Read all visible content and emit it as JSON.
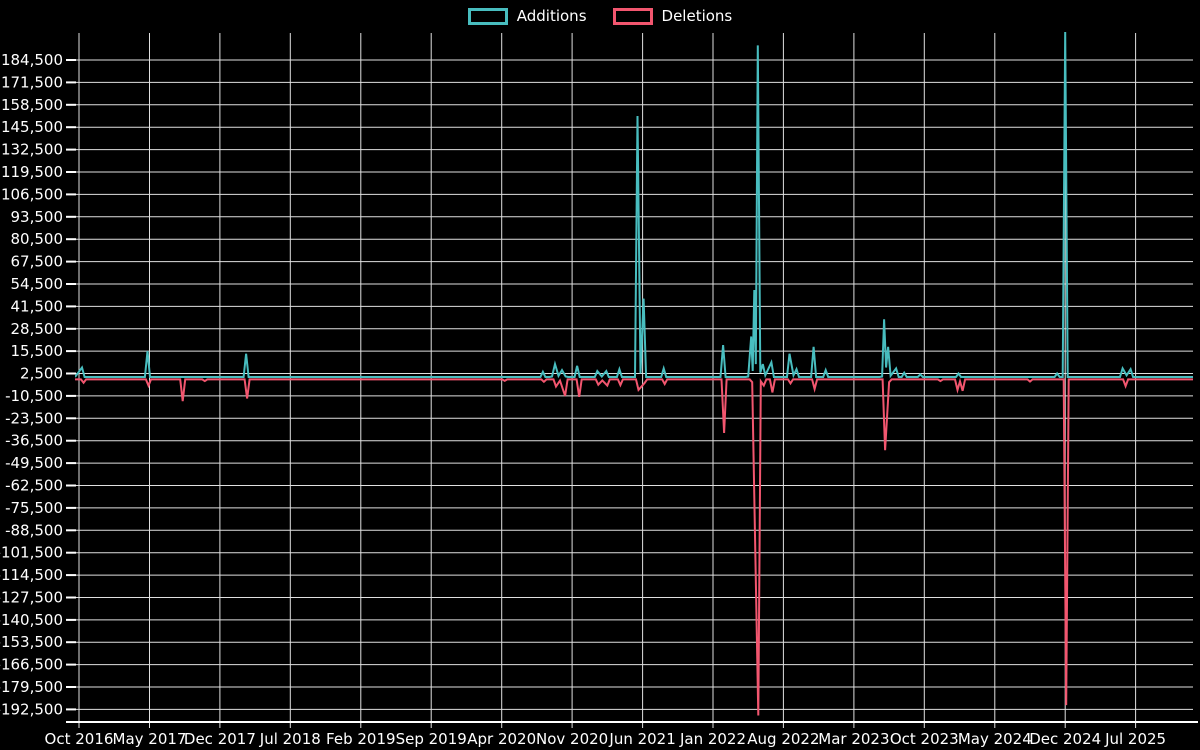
{
  "legend": {
    "items": [
      {
        "label": "Additions",
        "color": "#48bdbf"
      },
      {
        "label": "Deletions",
        "color": "#f2566f"
      }
    ]
  },
  "chart_data": {
    "type": "line",
    "title": "",
    "description": "Weekly code additions (teal, positive spikes) and deletions (pink, negative spikes) over time",
    "legend_position": "top-center",
    "grid": true,
    "background": "#000000",
    "grid_color": "#e0e0e0",
    "axis_color": "#ffffff",
    "text_color": "#ffffff",
    "x_axis": {
      "unit": "months since Oct 2016",
      "tick_labels": [
        "Oct 2016",
        "May 2017",
        "Dec 2017",
        "Jul 2018",
        "Feb 2019",
        "Sep 2019",
        "Apr 2020",
        "Nov 2020",
        "Jun 2021",
        "Jan 2022",
        "Aug 2022",
        "Mar 2023",
        "Oct 2023",
        "May 2024",
        "Dec 2024",
        "Jul 2025"
      ],
      "tick_month_offsets": [
        0,
        7,
        14,
        21,
        28,
        35,
        42,
        49,
        56,
        63,
        70,
        77,
        84,
        91,
        98,
        105
      ],
      "range_month_offsets": [
        -0.4,
        110.7
      ]
    },
    "y_axis": {
      "tick_labels": [
        "184,500",
        "171,500",
        "158,500",
        "145,500",
        "132,500",
        "119,500",
        "106,500",
        "93,500",
        "80,500",
        "67,500",
        "54,500",
        "41,500",
        "28,500",
        "15,500",
        "2,500",
        "-10,500",
        "-23,500",
        "-36,500",
        "-49,500",
        "-62,500",
        "-75,500",
        "-88,500",
        "-101,500",
        "-114,500",
        "-127,500",
        "-140,500",
        "-153,500",
        "-166,500",
        "-179,500",
        "-192,500"
      ],
      "tick_step": 13000,
      "range": [
        -199800,
        200200
      ]
    },
    "series": [
      {
        "name": "Additions",
        "color": "#48bdbf",
        "baseline": 500,
        "points": [
          [
            0.3,
            6000
          ],
          [
            6.8,
            15500
          ],
          [
            16.6,
            14000
          ],
          [
            46.1,
            3500
          ],
          [
            47.0,
            800
          ],
          [
            47.3,
            8000
          ],
          [
            47.65,
            1200
          ],
          [
            48.0,
            4500
          ],
          [
            48.35,
            800
          ],
          [
            49.5,
            7000
          ],
          [
            51.5,
            4000
          ],
          [
            51.95,
            800
          ],
          [
            52.4,
            4000
          ],
          [
            53.7,
            5000
          ],
          [
            55.5,
            152000
          ],
          [
            55.8,
            2500
          ],
          [
            56.1,
            46000
          ],
          [
            58.1,
            5500
          ],
          [
            64.0,
            19000
          ],
          [
            66.5,
            800
          ],
          [
            66.8,
            24000
          ],
          [
            66.95,
            4000
          ],
          [
            67.1,
            51000
          ],
          [
            67.25,
            8000
          ],
          [
            67.45,
            193000
          ],
          [
            67.7,
            3000
          ],
          [
            67.95,
            8000
          ],
          [
            68.2,
            1500
          ],
          [
            68.8,
            9000
          ],
          [
            70.6,
            14000
          ],
          [
            71.0,
            1500
          ],
          [
            71.3,
            5000
          ],
          [
            73.0,
            18000
          ],
          [
            74.2,
            4500
          ],
          [
            79.8,
            800
          ],
          [
            80.0,
            34000
          ],
          [
            80.2,
            6000
          ],
          [
            80.4,
            18000
          ],
          [
            80.65,
            1200
          ],
          [
            81.2,
            5500
          ],
          [
            82.0,
            3000
          ],
          [
            83.6,
            2000
          ],
          [
            87.4,
            2500
          ],
          [
            97.2,
            2500
          ],
          [
            98.0,
            201000
          ],
          [
            103.7,
            5500
          ],
          [
            104.1,
            1500
          ],
          [
            104.5,
            5000
          ]
        ]
      },
      {
        "name": "Deletions",
        "color": "#f2566f",
        "baseline": -900,
        "points": [
          [
            0.45,
            -2800
          ],
          [
            6.9,
            -4500
          ],
          [
            10.3,
            -13500
          ],
          [
            12.5,
            -1900
          ],
          [
            16.7,
            -12000
          ],
          [
            42.3,
            -1700
          ],
          [
            46.2,
            -2300
          ],
          [
            47.4,
            -5000
          ],
          [
            47.8,
            -1600
          ],
          [
            48.3,
            -10500
          ],
          [
            49.7,
            -11000
          ],
          [
            51.6,
            -4000
          ],
          [
            52.0,
            -1500
          ],
          [
            52.5,
            -4500
          ],
          [
            53.8,
            -4200
          ],
          [
            55.6,
            -7000
          ],
          [
            56.2,
            -3000
          ],
          [
            58.2,
            -3600
          ],
          [
            64.1,
            -32000
          ],
          [
            66.9,
            -2500
          ],
          [
            67.5,
            -196000
          ],
          [
            67.75,
            -2000
          ],
          [
            68.05,
            -4500
          ],
          [
            68.9,
            -8500
          ],
          [
            70.7,
            -3200
          ],
          [
            73.1,
            -6500
          ],
          [
            80.1,
            -42000
          ],
          [
            80.5,
            -2500
          ],
          [
            85.6,
            -1900
          ],
          [
            87.3,
            -7000
          ],
          [
            87.55,
            -2000
          ],
          [
            87.8,
            -7500
          ],
          [
            94.5,
            -2200
          ],
          [
            98.1,
            -190000
          ],
          [
            104.0,
            -4800
          ]
        ]
      }
    ]
  }
}
